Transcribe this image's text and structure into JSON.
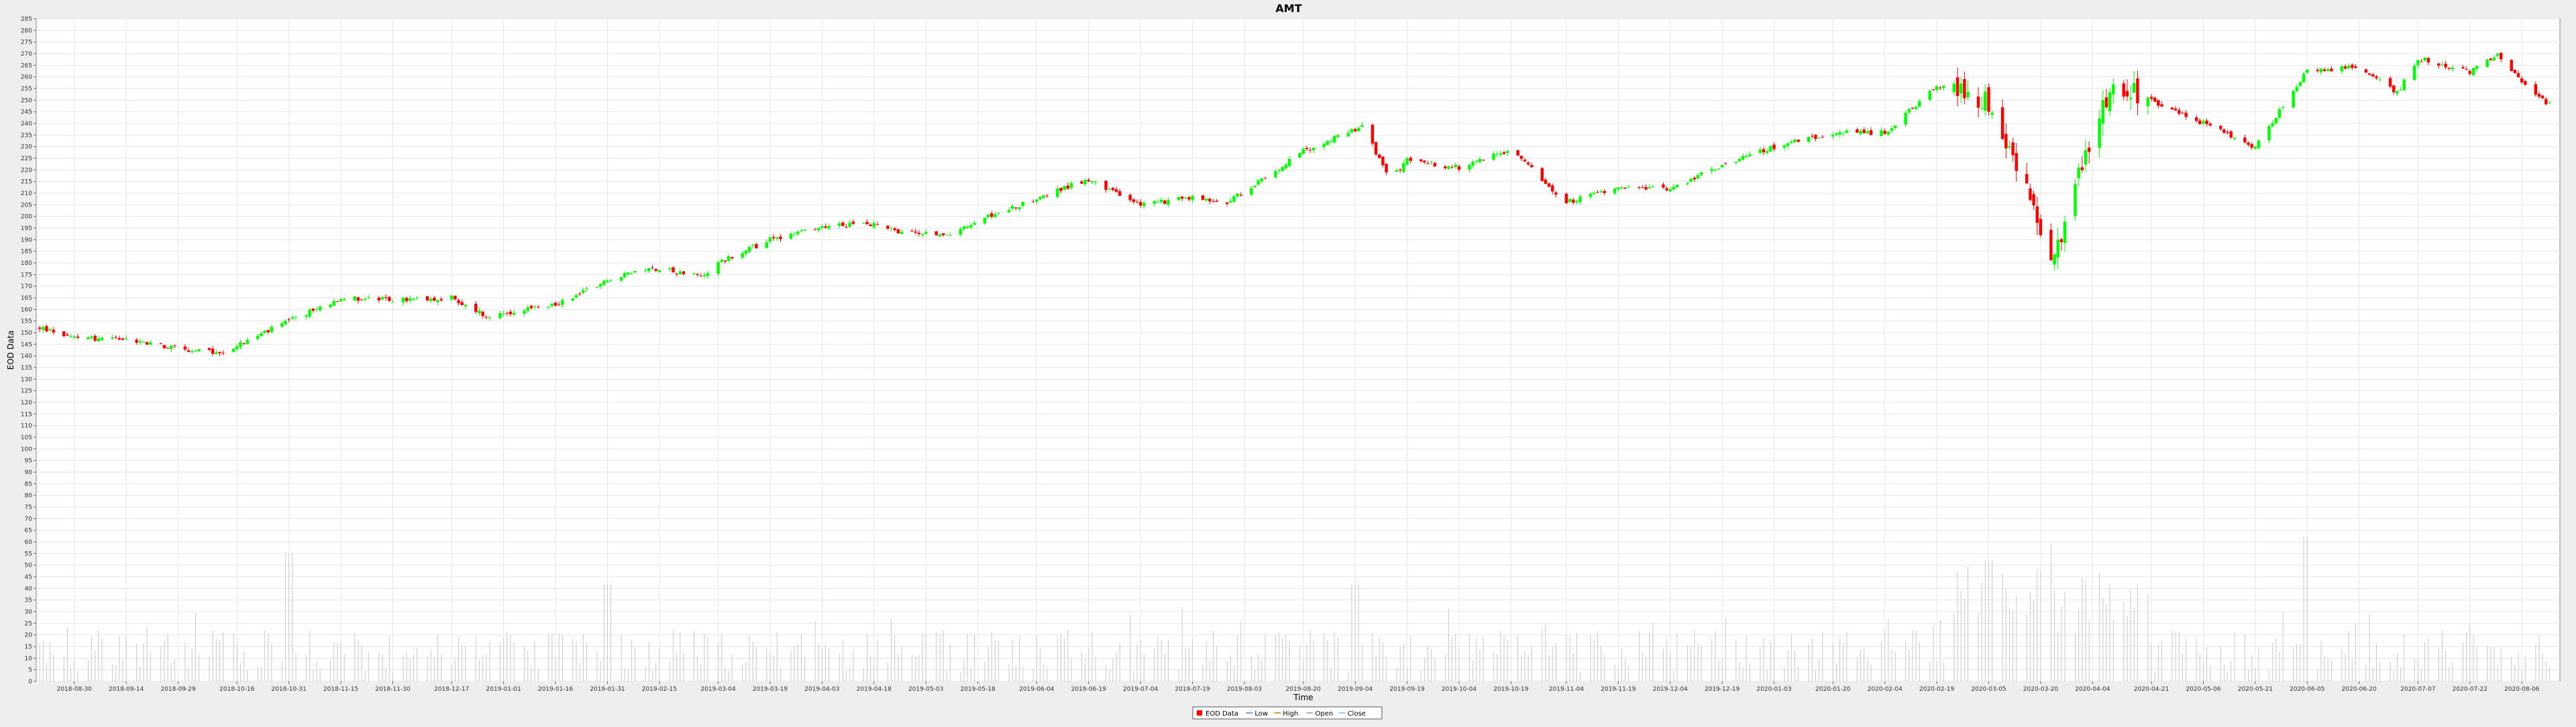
{
  "chart_data": {
    "type": "candlestick",
    "title": "AMT",
    "xlabel": "Time",
    "ylabel": "EOD Data",
    "ylim": [
      0,
      285
    ],
    "y_tick_step": 5,
    "grid": true,
    "legend_position": "bottom-center",
    "legend": [
      "EOD Data",
      "Low",
      "High",
      "Open",
      "Close"
    ],
    "x_tick_labels": [
      "2018-08-30",
      "2018-09-14",
      "2018-09-29",
      "2018-10-16",
      "2018-10-31",
      "2018-11-15",
      "2018-11-30",
      "2018-12-17",
      "2019-01-01",
      "2019-01-16",
      "2019-01-31",
      "2019-02-15",
      "2019-03-04",
      "2019-03-19",
      "2019-04-03",
      "2019-04-18",
      "2019-05-03",
      "2019-05-18",
      "2019-06-04",
      "2019-06-19",
      "2019-07-04",
      "2019-07-19",
      "2019-08-03",
      "2019-08-20",
      "2019-09-04",
      "2019-09-19",
      "2019-10-04",
      "2019-10-19",
      "2019-11-04",
      "2019-11-19",
      "2019-12-04",
      "2019-12-19",
      "2020-01-03",
      "2020-01-20",
      "2020-02-04",
      "2020-02-19",
      "2020-03-05",
      "2020-03-20",
      "2020-04-04",
      "2020-04-21",
      "2020-05-06",
      "2020-05-21",
      "2020-06-05",
      "2020-06-20",
      "2020-07-07",
      "2020-07-22",
      "2020-08-06"
    ],
    "price_path_keypoints": [
      [
        "2018-08-20",
        152
      ],
      [
        "2018-08-30",
        148
      ],
      [
        "2018-09-14",
        147
      ],
      [
        "2018-09-29",
        143
      ],
      [
        "2018-10-11",
        141
      ],
      [
        "2018-10-31",
        155
      ],
      [
        "2018-11-15",
        165
      ],
      [
        "2018-11-30",
        164
      ],
      [
        "2018-12-17",
        165
      ],
      [
        "2018-12-27",
        157
      ],
      [
        "2019-01-16",
        162
      ],
      [
        "2019-01-31",
        173
      ],
      [
        "2019-02-15",
        178
      ],
      [
        "2019-02-27",
        174
      ],
      [
        "2019-03-04",
        180
      ],
      [
        "2019-03-19",
        190
      ],
      [
        "2019-04-03",
        196
      ],
      [
        "2019-04-18",
        197
      ],
      [
        "2019-04-25",
        193
      ],
      [
        "2019-05-11",
        192
      ],
      [
        "2019-05-18",
        198
      ],
      [
        "2019-06-04",
        208
      ],
      [
        "2019-06-19",
        216
      ],
      [
        "2019-07-04",
        205
      ],
      [
        "2019-07-19",
        208
      ],
      [
        "2019-07-29",
        206
      ],
      [
        "2019-08-20",
        228
      ],
      [
        "2019-09-06",
        239
      ],
      [
        "2019-09-14",
        216
      ],
      [
        "2019-09-19",
        224
      ],
      [
        "2019-10-04",
        221
      ],
      [
        "2019-10-19",
        229
      ],
      [
        "2019-11-04",
        206
      ],
      [
        "2019-11-19",
        213
      ],
      [
        "2019-12-04",
        212
      ],
      [
        "2019-12-19",
        222
      ],
      [
        "2020-01-03",
        230
      ],
      [
        "2020-01-20",
        236
      ],
      [
        "2020-02-04",
        236
      ],
      [
        "2020-02-19",
        256
      ],
      [
        "2020-03-05",
        249
      ],
      [
        "2020-03-14",
        220
      ],
      [
        "2020-03-23",
        178
      ],
      [
        "2020-04-04",
        237
      ],
      [
        "2020-04-10",
        258
      ],
      [
        "2020-04-21",
        250
      ],
      [
        "2020-05-06",
        240
      ],
      [
        "2020-05-21",
        230
      ],
      [
        "2020-06-05",
        263
      ],
      [
        "2020-06-20",
        264
      ],
      [
        "2020-07-01",
        253
      ],
      [
        "2020-07-07",
        268
      ],
      [
        "2020-07-22",
        262
      ],
      [
        "2020-07-30",
        270
      ],
      [
        "2020-08-06",
        258
      ],
      [
        "2020-08-14",
        248
      ]
    ],
    "volume_scale_note": "volume bars plotted on the same 0-285 axis",
    "volume_peaks": [
      [
        "2018-10-31",
        55
      ],
      [
        "2019-01-31",
        42
      ],
      [
        "2019-09-04",
        42
      ],
      [
        "2020-03-05",
        52
      ],
      [
        "2020-03-20",
        48
      ],
      [
        "2020-06-05",
        62
      ]
    ]
  },
  "colors": {
    "up": "#00ff00",
    "down": "#ff0000",
    "grid": "#e6e6e6",
    "volume": "#c8c8c8",
    "plot_bg": "#ffffff",
    "page_bg": "#eeeeee"
  }
}
